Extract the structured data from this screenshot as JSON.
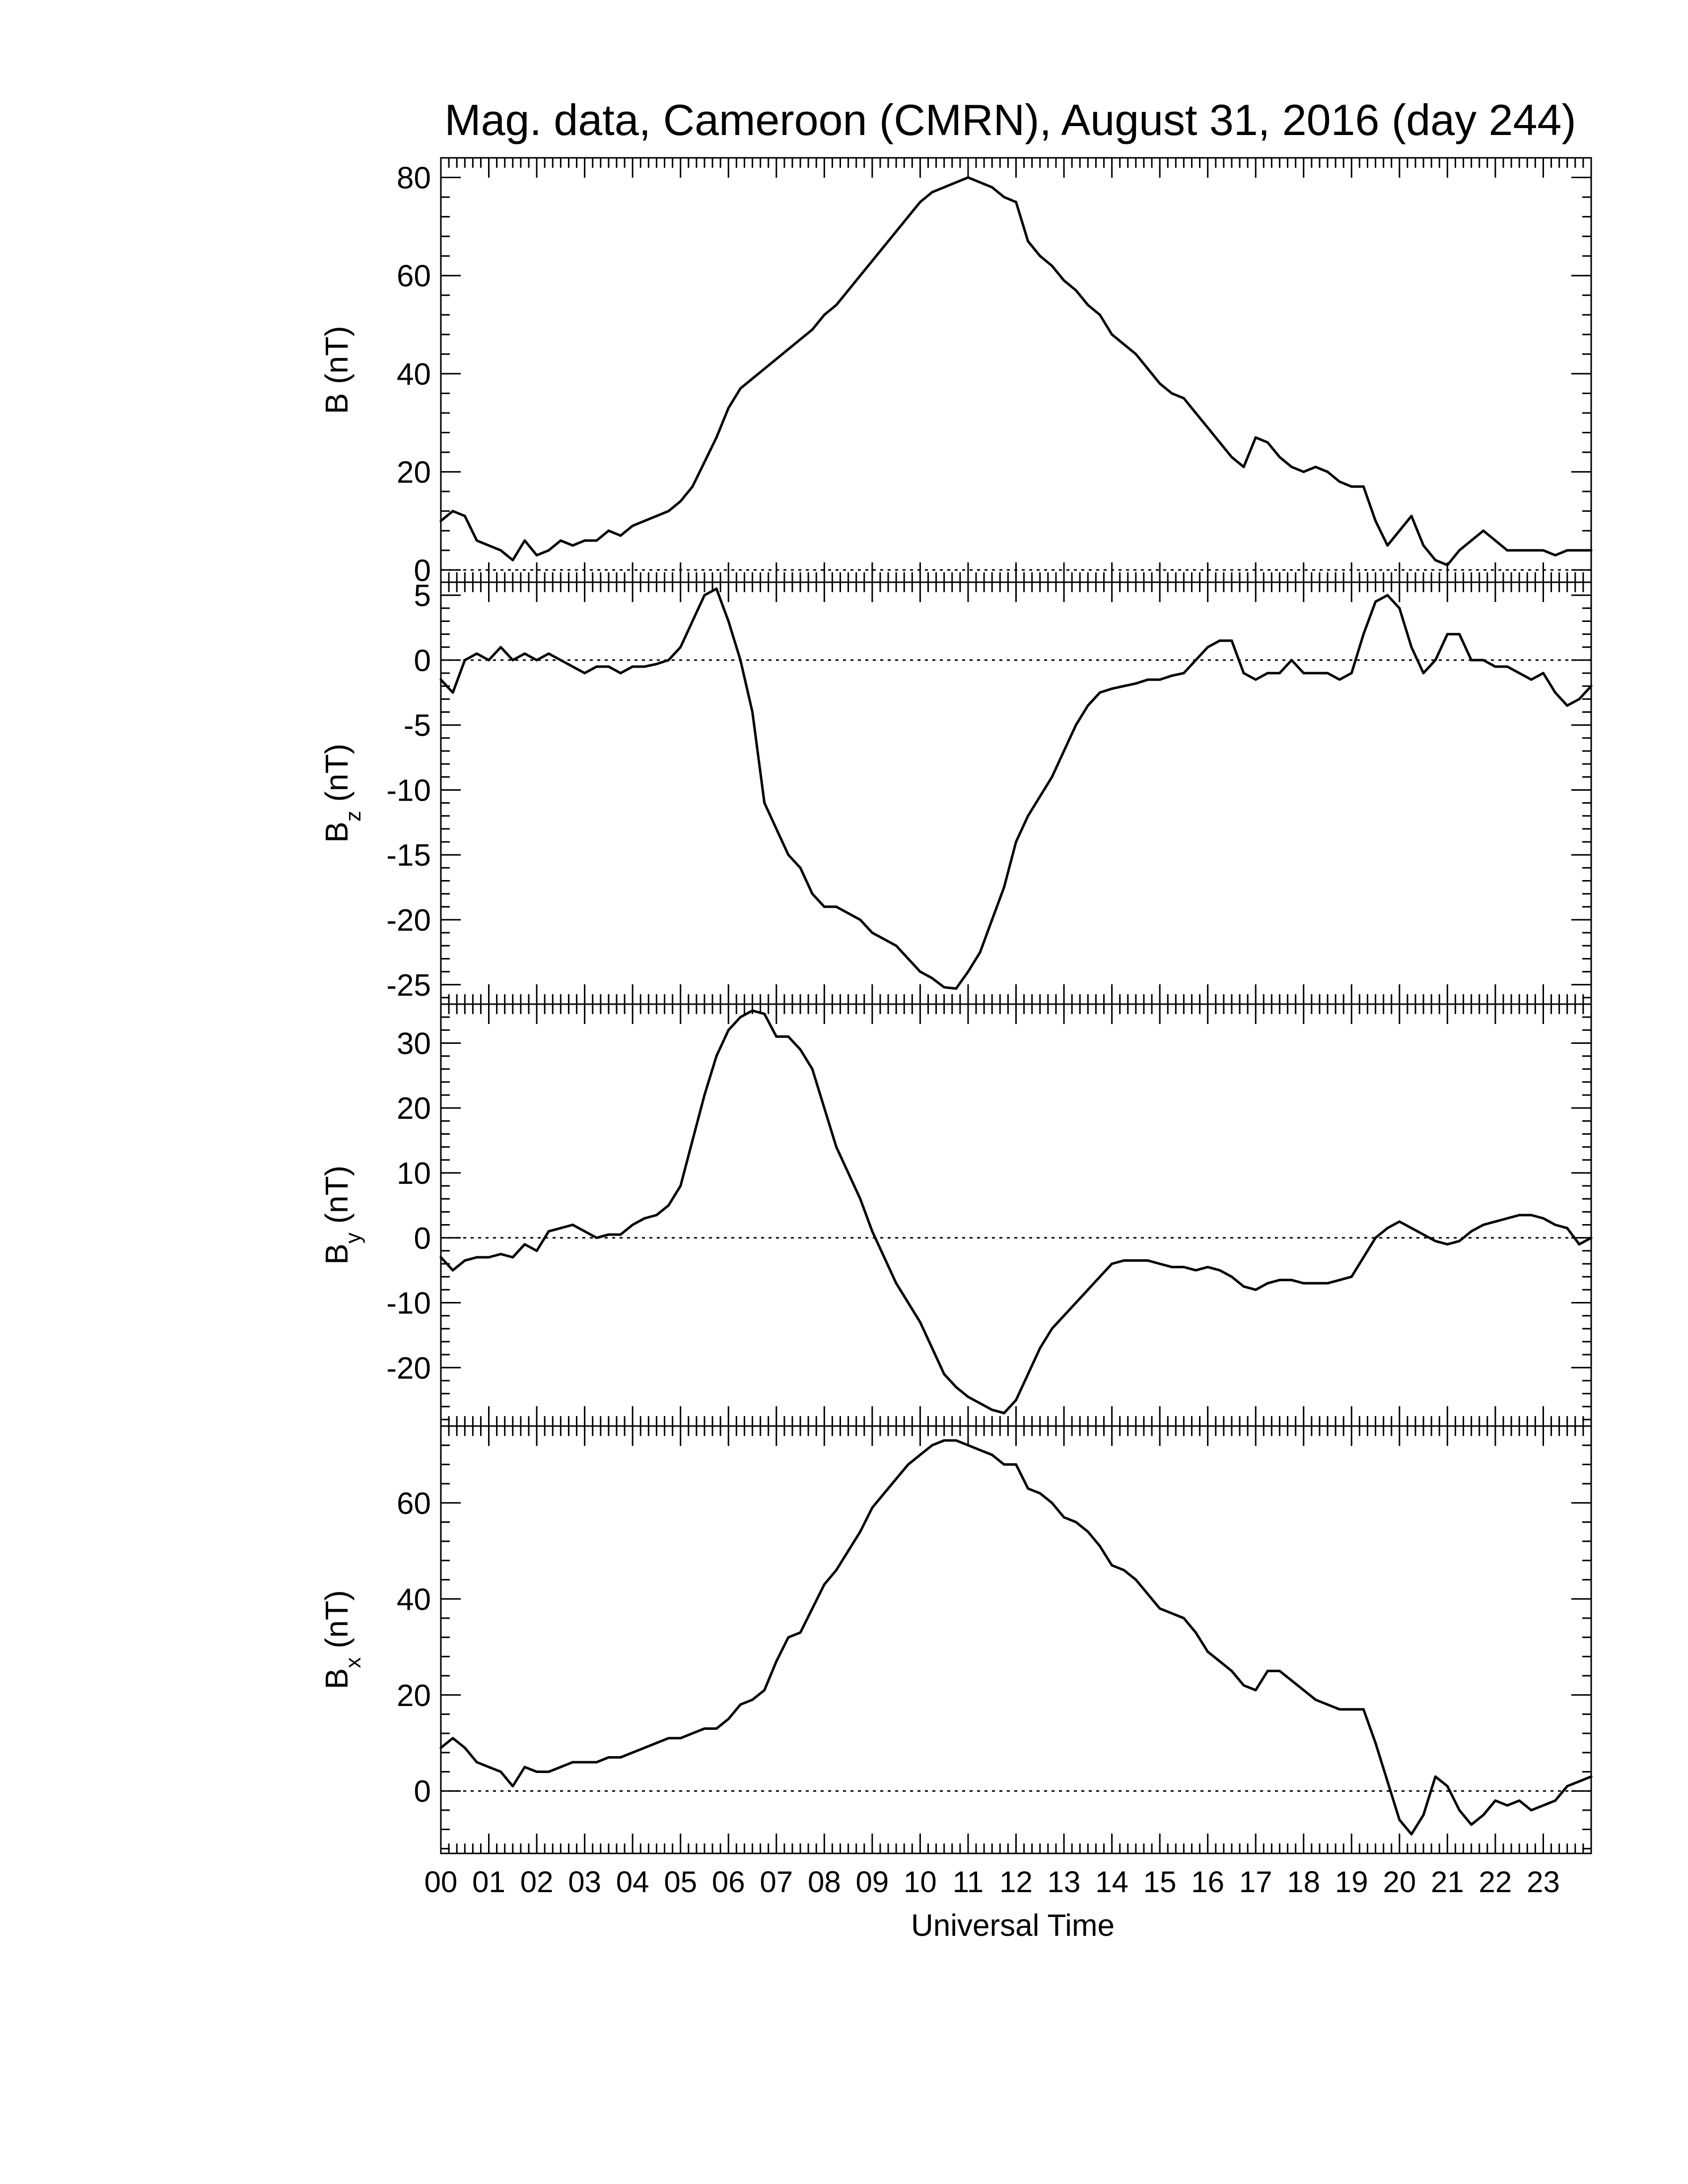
{
  "title": "Mag. data, Cameroon (CMRN), August 31, 2016 (day 244)",
  "colors": {
    "trace": "#000000",
    "axis": "#000000",
    "zero_line": "#000000",
    "background": "#ffffff"
  },
  "chart_data": [
    {
      "type": "line",
      "panel": "B",
      "ylabel_main": "B",
      "ylabel_sub": "",
      "ylabel_unit": "(nT)",
      "ylim": [
        -2.5,
        84.0
      ],
      "yticks": [
        0,
        20,
        40,
        60,
        80
      ],
      "ytick_labels": [
        "0",
        "20",
        "40",
        "60",
        "80"
      ],
      "zero_line": true,
      "x": [
        0.0,
        0.25,
        0.5,
        0.75,
        1.0,
        1.25,
        1.5,
        1.75,
        2.0,
        2.25,
        2.5,
        2.75,
        3.0,
        3.25,
        3.5,
        3.75,
        4.0,
        4.25,
        4.5,
        4.75,
        5.0,
        5.25,
        5.5,
        5.75,
        6.0,
        6.25,
        6.5,
        6.75,
        7.0,
        7.25,
        7.5,
        7.75,
        8.0,
        8.25,
        8.5,
        8.75,
        9.0,
        9.25,
        9.5,
        9.75,
        10.0,
        10.25,
        10.5,
        10.75,
        11.0,
        11.25,
        11.5,
        11.75,
        12.0,
        12.25,
        12.5,
        12.75,
        13.0,
        13.25,
        13.5,
        13.75,
        14.0,
        14.25,
        14.5,
        14.75,
        15.0,
        15.25,
        15.5,
        15.75,
        16.0,
        16.25,
        16.5,
        16.75,
        17.0,
        17.25,
        17.5,
        17.75,
        18.0,
        18.25,
        18.5,
        18.75,
        19.0,
        19.25,
        19.5,
        19.75,
        20.0,
        20.25,
        20.5,
        20.75,
        21.0,
        21.25,
        21.5,
        21.75,
        22.0,
        22.25,
        22.5,
        22.75,
        23.0,
        23.25,
        23.5,
        23.75,
        24.0
      ],
      "y": [
        10,
        12,
        11,
        6,
        5,
        4,
        2,
        6,
        3,
        4,
        6,
        5,
        6,
        6,
        8,
        7,
        9,
        10,
        11,
        12,
        14,
        17,
        22,
        27,
        33,
        37,
        39,
        41,
        43,
        45,
        47,
        49,
        52,
        54,
        57,
        60,
        63,
        66,
        69,
        72,
        75,
        77,
        78,
        79,
        80,
        79,
        78,
        76,
        75,
        67,
        64,
        62,
        59,
        57,
        54,
        52,
        48,
        46,
        44,
        41,
        38,
        36,
        35,
        32,
        29,
        26,
        23,
        21,
        27,
        26,
        23,
        21,
        20,
        21,
        20,
        18,
        17,
        17,
        10,
        5,
        8,
        11,
        5,
        2,
        1,
        4,
        6,
        8,
        6,
        4,
        4,
        4,
        4,
        3,
        4,
        4,
        4
      ]
    },
    {
      "type": "line",
      "panel": "Bz",
      "ylabel_main": "B",
      "ylabel_sub": "z",
      "ylabel_unit": "(nT)",
      "ylim": [
        -26.5,
        6.0
      ],
      "yticks": [
        -25,
        -20,
        -15,
        -10,
        -5,
        0,
        5
      ],
      "ytick_labels": [
        "-25",
        "-20",
        "-15",
        "-10",
        "-5",
        "0",
        "5"
      ],
      "zero_line": true,
      "x": [
        0.0,
        0.25,
        0.5,
        0.75,
        1.0,
        1.25,
        1.5,
        1.75,
        2.0,
        2.25,
        2.5,
        2.75,
        3.0,
        3.25,
        3.5,
        3.75,
        4.0,
        4.25,
        4.5,
        4.75,
        5.0,
        5.25,
        5.5,
        5.75,
        6.0,
        6.25,
        6.5,
        6.75,
        7.0,
        7.25,
        7.5,
        7.75,
        8.0,
        8.25,
        8.5,
        8.75,
        9.0,
        9.25,
        9.5,
        9.75,
        10.0,
        10.25,
        10.5,
        10.75,
        11.0,
        11.25,
        11.5,
        11.75,
        12.0,
        12.25,
        12.5,
        12.75,
        13.0,
        13.25,
        13.5,
        13.75,
        14.0,
        14.25,
        14.5,
        14.75,
        15.0,
        15.25,
        15.5,
        15.75,
        16.0,
        16.25,
        16.5,
        16.75,
        17.0,
        17.25,
        17.5,
        17.75,
        18.0,
        18.25,
        18.5,
        18.75,
        19.0,
        19.25,
        19.5,
        19.75,
        20.0,
        20.25,
        20.5,
        20.75,
        21.0,
        21.25,
        21.5,
        21.75,
        22.0,
        22.25,
        22.5,
        22.75,
        23.0,
        23.25,
        23.5,
        23.75,
        24.0
      ],
      "y": [
        -1.5,
        -2.5,
        0,
        0.5,
        0,
        1,
        0,
        0.5,
        0,
        0.5,
        0,
        -0.5,
        -1,
        -0.5,
        -0.5,
        -1,
        -0.5,
        -0.5,
        -0.3,
        0,
        1,
        3,
        5,
        5.5,
        3,
        0,
        -4,
        -11,
        -13,
        -15,
        -16,
        -18,
        -19,
        -19,
        -19.5,
        -20,
        -21,
        -21.5,
        -22,
        -23,
        -24,
        -24.5,
        -25.2,
        -25.3,
        -24,
        -22.5,
        -20,
        -17.5,
        -14,
        -12,
        -10.5,
        -9,
        -7,
        -5,
        -3.5,
        -2.5,
        -2.2,
        -2,
        -1.8,
        -1.5,
        -1.5,
        -1.2,
        -1,
        0,
        1,
        1.5,
        1.5,
        -1,
        -1.5,
        -1,
        -1,
        0,
        -1,
        -1,
        -1,
        -1.5,
        -1,
        2,
        4.5,
        5,
        4,
        1,
        -1,
        0,
        2,
        2,
        0,
        0,
        -0.5,
        -0.5,
        -1,
        -1.5,
        -1,
        -2.5,
        -3.5,
        -3,
        -2
      ]
    },
    {
      "type": "line",
      "panel": "By",
      "ylabel_main": "B",
      "ylabel_sub": "y",
      "ylabel_unit": "(nT)",
      "ylim": [
        -29.0,
        36.0
      ],
      "yticks": [
        -20,
        -10,
        0,
        10,
        20,
        30
      ],
      "ytick_labels": [
        "-20",
        "-10",
        "0",
        "10",
        "20",
        "30"
      ],
      "zero_line": true,
      "x": [
        0.0,
        0.25,
        0.5,
        0.75,
        1.0,
        1.25,
        1.5,
        1.75,
        2.0,
        2.25,
        2.5,
        2.75,
        3.0,
        3.25,
        3.5,
        3.75,
        4.0,
        4.25,
        4.5,
        4.75,
        5.0,
        5.25,
        5.5,
        5.75,
        6.0,
        6.25,
        6.5,
        6.75,
        7.0,
        7.25,
        7.5,
        7.75,
        8.0,
        8.25,
        8.5,
        8.75,
        9.0,
        9.25,
        9.5,
        9.75,
        10.0,
        10.25,
        10.5,
        10.75,
        11.0,
        11.25,
        11.5,
        11.75,
        12.0,
        12.25,
        12.5,
        12.75,
        13.0,
        13.25,
        13.5,
        13.75,
        14.0,
        14.25,
        14.5,
        14.75,
        15.0,
        15.25,
        15.5,
        15.75,
        16.0,
        16.25,
        16.5,
        16.75,
        17.0,
        17.25,
        17.5,
        17.75,
        18.0,
        18.25,
        18.5,
        18.75,
        19.0,
        19.25,
        19.5,
        19.75,
        20.0,
        20.25,
        20.5,
        20.75,
        21.0,
        21.25,
        21.5,
        21.75,
        22.0,
        22.25,
        22.5,
        22.75,
        23.0,
        23.25,
        23.5,
        23.75,
        24.0
      ],
      "y": [
        -3,
        -5,
        -3.5,
        -3,
        -3,
        -2.5,
        -3,
        -1,
        -2,
        1,
        1.5,
        2,
        1,
        0,
        0.5,
        0.5,
        2,
        3,
        3.5,
        5,
        8,
        15,
        22,
        28,
        32,
        34,
        35,
        34.5,
        31,
        31,
        29,
        26,
        20,
        14,
        10,
        6,
        1,
        -3,
        -7,
        -10,
        -13,
        -17,
        -21,
        -23,
        -24.5,
        -25.5,
        -26.5,
        -27,
        -25,
        -21,
        -17,
        -14,
        -12,
        -10,
        -8,
        -6,
        -4,
        -3.5,
        -3.5,
        -3.5,
        -4,
        -4.5,
        -4.5,
        -5,
        -4.5,
        -5,
        -6,
        -7.5,
        -8,
        -7,
        -6.5,
        -6.5,
        -7,
        -7,
        -7,
        -6.5,
        -6,
        -3,
        0,
        1.5,
        2.5,
        1.5,
        0.5,
        -0.5,
        -1,
        -0.5,
        1,
        2,
        2.5,
        3,
        3.5,
        3.5,
        3,
        2,
        1.5,
        -1,
        0
      ]
    },
    {
      "type": "line",
      "panel": "Bx",
      "ylabel_main": "B",
      "ylabel_sub": "x",
      "ylabel_unit": "(nT)",
      "ylim": [
        -13.0,
        76.0
      ],
      "yticks": [
        0,
        20,
        40,
        60
      ],
      "ytick_labels": [
        "0",
        "20",
        "40",
        "60"
      ],
      "zero_line": true,
      "x": [
        0.0,
        0.25,
        0.5,
        0.75,
        1.0,
        1.25,
        1.5,
        1.75,
        2.0,
        2.25,
        2.5,
        2.75,
        3.0,
        3.25,
        3.5,
        3.75,
        4.0,
        4.25,
        4.5,
        4.75,
        5.0,
        5.25,
        5.5,
        5.75,
        6.0,
        6.25,
        6.5,
        6.75,
        7.0,
        7.25,
        7.5,
        7.75,
        8.0,
        8.25,
        8.5,
        8.75,
        9.0,
        9.25,
        9.5,
        9.75,
        10.0,
        10.25,
        10.5,
        10.75,
        11.0,
        11.25,
        11.5,
        11.75,
        12.0,
        12.25,
        12.5,
        12.75,
        13.0,
        13.25,
        13.5,
        13.75,
        14.0,
        14.25,
        14.5,
        14.75,
        15.0,
        15.25,
        15.5,
        15.75,
        16.0,
        16.25,
        16.5,
        16.75,
        17.0,
        17.25,
        17.5,
        17.75,
        18.0,
        18.25,
        18.5,
        18.75,
        19.0,
        19.25,
        19.5,
        19.75,
        20.0,
        20.25,
        20.5,
        20.75,
        21.0,
        21.25,
        21.5,
        21.75,
        22.0,
        22.25,
        22.5,
        22.75,
        23.0,
        23.25,
        23.5,
        23.75,
        24.0
      ],
      "y": [
        9,
        11,
        9,
        6,
        5,
        4,
        1,
        5,
        4,
        4,
        5,
        6,
        6,
        6,
        7,
        7,
        8,
        9,
        10,
        11,
        11,
        12,
        13,
        13,
        15,
        18,
        19,
        21,
        27,
        32,
        33,
        38,
        43,
        46,
        50,
        54,
        59,
        62,
        65,
        68,
        70,
        72,
        73,
        73,
        72,
        71,
        70,
        68,
        68,
        63,
        62,
        60,
        57,
        56,
        54,
        51,
        47,
        46,
        44,
        41,
        38,
        37,
        36,
        33,
        29,
        27,
        25,
        22,
        21,
        25,
        25,
        23,
        21,
        19,
        18,
        17,
        17,
        17,
        10,
        2,
        -6,
        -9,
        -5,
        3,
        1,
        -4,
        -7,
        -5,
        -2,
        -3,
        -2,
        -4,
        -3,
        -2,
        1,
        2,
        3
      ]
    }
  ],
  "xaxis": {
    "label": "Universal Time",
    "range": [
      0,
      24
    ],
    "tick_labels": [
      "00",
      "01",
      "02",
      "03",
      "04",
      "05",
      "06",
      "07",
      "08",
      "09",
      "10",
      "11",
      "12",
      "13",
      "14",
      "15",
      "16",
      "17",
      "18",
      "19",
      "20",
      "21",
      "22",
      "23"
    ]
  }
}
